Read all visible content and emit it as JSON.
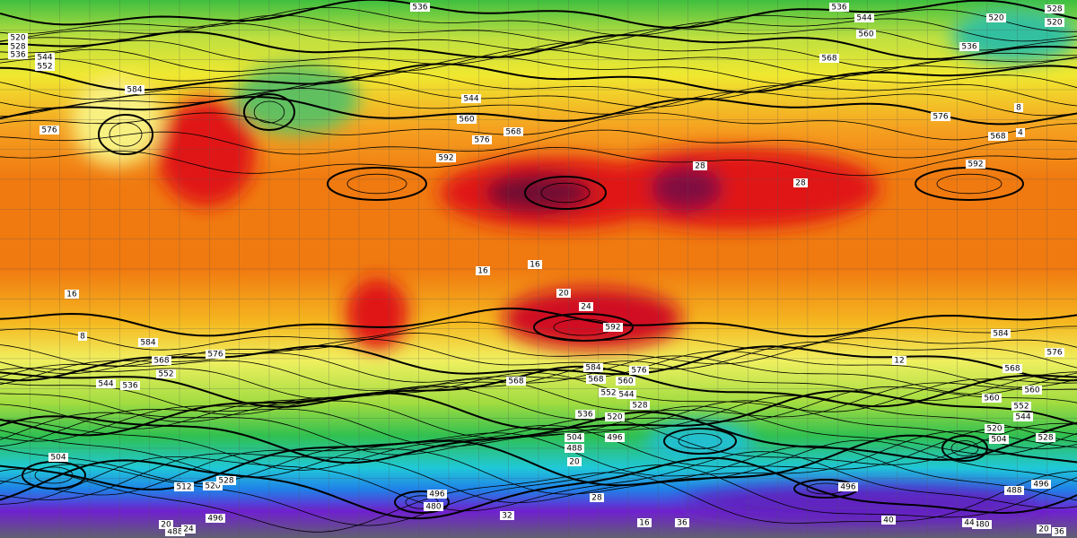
{
  "contour_labels": [
    "536",
    "536",
    "544",
    "560",
    "520",
    "528",
    "536",
    "544",
    "552",
    "528",
    "520",
    "520",
    "536",
    "568",
    "544",
    "560",
    "576",
    "568",
    "592",
    "592",
    "576",
    "568",
    "584",
    "576",
    "584",
    "568",
    "552",
    "544",
    "536",
    "576",
    "592",
    "584",
    "576",
    "568",
    "560",
    "552",
    "544",
    "528",
    "520",
    "536",
    "496",
    "488",
    "504",
    "568",
    "584",
    "568",
    "576",
    "560",
    "560",
    "552",
    "544",
    "520",
    "504",
    "528",
    "496",
    "488",
    "480",
    "496",
    "480",
    "496",
    "520",
    "528",
    "512",
    "504",
    "496",
    "488",
    "20",
    "24",
    "32",
    "40",
    "16",
    "36",
    "28",
    "20",
    "44",
    "20",
    "36",
    "24",
    "20",
    "16",
    "16",
    "28",
    "28",
    "16",
    "8",
    "12",
    "8",
    "4"
  ]
}
